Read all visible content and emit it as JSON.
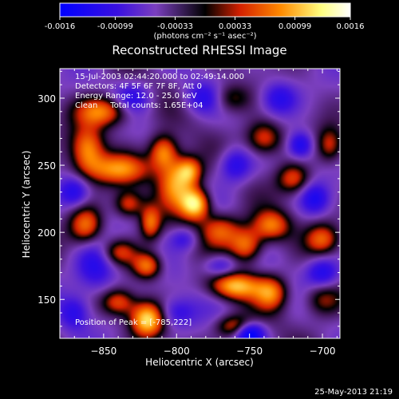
{
  "colorbar": {
    "tick_labels": [
      "-0.0016",
      "-0.00099",
      "-0.00033",
      "0.00033",
      "0.00099",
      "0.0016"
    ],
    "tick_values": [
      -0.0016,
      -0.00099,
      -0.00033,
      0.00033,
      0.00099,
      0.0016
    ],
    "range": [
      -0.0016,
      0.0016
    ],
    "unit_label": "(photons cm⁻² s⁻¹ asec⁻²)"
  },
  "chart_data": {
    "type": "heatmap",
    "title": "Reconstructed RHESSI Image",
    "xlabel": "Heliocentric X (arcsec)",
    "ylabel": "Heliocentric Y (arcsec)",
    "xlim": [
      -880,
      -688
    ],
    "ylim": [
      121,
      322
    ],
    "x_ticks": [
      -850,
      -800,
      -750,
      -700
    ],
    "x_tick_labels": [
      "−850",
      "−800",
      "−750",
      "−700"
    ],
    "y_ticks": [
      150,
      200,
      250,
      300
    ],
    "y_tick_labels": [
      "150",
      "200",
      "250",
      "300"
    ],
    "colormap": [
      "#0000ff",
      "#7b3fbf",
      "#000000",
      "#d42000",
      "#ff8a00",
      "#ffff80",
      "#ffffff"
    ],
    "peak": [
      -785,
      222
    ],
    "blobs": [
      {
        "x": -787,
        "y": 221,
        "sx": 7,
        "sy": 8,
        "v": 1.0
      },
      {
        "x": -800,
        "y": 237,
        "sx": 9,
        "sy": 13,
        "v": 0.78
      },
      {
        "x": -809,
        "y": 260,
        "sx": 7,
        "sy": 9,
        "v": 0.75
      },
      {
        "x": -791,
        "y": 246,
        "sx": 6,
        "sy": 7,
        "v": 0.6
      },
      {
        "x": -840,
        "y": 247,
        "sx": 16,
        "sy": 8,
        "v": 0.65
      },
      {
        "x": -861,
        "y": 262,
        "sx": 8,
        "sy": 12,
        "v": 0.7
      },
      {
        "x": -850,
        "y": 290,
        "sx": 13,
        "sy": 8,
        "v": 0.72
      },
      {
        "x": -862,
        "y": 205,
        "sx": 8,
        "sy": 10,
        "v": 0.68
      },
      {
        "x": -840,
        "y": 185,
        "sx": 9,
        "sy": 7,
        "v": 0.55
      },
      {
        "x": -833,
        "y": 221,
        "sx": 7,
        "sy": 7,
        "v": 0.55
      },
      {
        "x": -818,
        "y": 207,
        "sx": 5,
        "sy": 9,
        "v": 0.6
      },
      {
        "x": -820,
        "y": 175,
        "sx": 7,
        "sy": 7,
        "v": 0.7
      },
      {
        "x": -820,
        "y": 135,
        "sx": 8,
        "sy": 9,
        "v": 0.92
      },
      {
        "x": -840,
        "y": 148,
        "sx": 8,
        "sy": 7,
        "v": 0.55
      },
      {
        "x": -770,
        "y": 202,
        "sx": 10,
        "sy": 9,
        "v": 0.62
      },
      {
        "x": -752,
        "y": 190,
        "sx": 8,
        "sy": 9,
        "v": 0.7
      },
      {
        "x": -735,
        "y": 205,
        "sx": 9,
        "sy": 8,
        "v": 0.65
      },
      {
        "x": -720,
        "y": 240,
        "sx": 8,
        "sy": 8,
        "v": 0.55
      },
      {
        "x": -740,
        "y": 270,
        "sx": 9,
        "sy": 9,
        "v": 0.6
      },
      {
        "x": -765,
        "y": 300,
        "sx": 10,
        "sy": 8,
        "v": 0.5
      },
      {
        "x": -760,
        "y": 160,
        "sx": 12,
        "sy": 7,
        "v": 0.8
      },
      {
        "x": -735,
        "y": 155,
        "sx": 8,
        "sy": 9,
        "v": 0.65
      },
      {
        "x": -760,
        "y": 130,
        "sx": 9,
        "sy": 6,
        "v": 0.6
      },
      {
        "x": -700,
        "y": 195,
        "sx": 8,
        "sy": 8,
        "v": 0.55
      },
      {
        "x": -700,
        "y": 150,
        "sx": 9,
        "sy": 9,
        "v": 0.45
      },
      {
        "x": -695,
        "y": 265,
        "sx": 6,
        "sy": 9,
        "v": 0.45
      },
      {
        "x": -855,
        "y": 175,
        "sx": 10,
        "sy": 14,
        "v": -0.5
      },
      {
        "x": -870,
        "y": 230,
        "sx": 7,
        "sy": 8,
        "v": -0.45
      },
      {
        "x": -830,
        "y": 300,
        "sx": 9,
        "sy": 8,
        "v": -0.4
      },
      {
        "x": -780,
        "y": 300,
        "sx": 10,
        "sy": 8,
        "v": -0.45
      },
      {
        "x": -730,
        "y": 300,
        "sx": 9,
        "sy": 9,
        "v": -0.5
      },
      {
        "x": -760,
        "y": 250,
        "sx": 8,
        "sy": 9,
        "v": -0.5
      },
      {
        "x": -770,
        "y": 175,
        "sx": 8,
        "sy": 6,
        "v": -0.45
      },
      {
        "x": -750,
        "y": 125,
        "sx": 7,
        "sy": 6,
        "v": -0.8
      },
      {
        "x": -715,
        "y": 265,
        "sx": 6,
        "sy": 7,
        "v": -0.55
      },
      {
        "x": -705,
        "y": 225,
        "sx": 7,
        "sy": 8,
        "v": -0.45
      },
      {
        "x": -700,
        "y": 170,
        "sx": 8,
        "sy": 8,
        "v": -0.5
      },
      {
        "x": -800,
        "y": 140,
        "sx": 9,
        "sy": 8,
        "v": -0.4
      },
      {
        "x": -870,
        "y": 140,
        "sx": 7,
        "sy": 9,
        "v": -0.4
      },
      {
        "x": -795,
        "y": 195,
        "sx": 7,
        "sy": 6,
        "v": -0.35
      }
    ],
    "annotations": [
      "15-Jul-2003 02:44:20.000 to 02:49:14.000",
      "Detectors: 4F 5F 6F 7F 8F, Att 0",
      "Energy Range: 12.0 - 25.0 keV",
      "Clean     Total counts: 1.65E+04",
      "Position of Peak = [-785,222]"
    ]
  },
  "footer": {
    "timestamp": "25-May-2013 21:19"
  }
}
